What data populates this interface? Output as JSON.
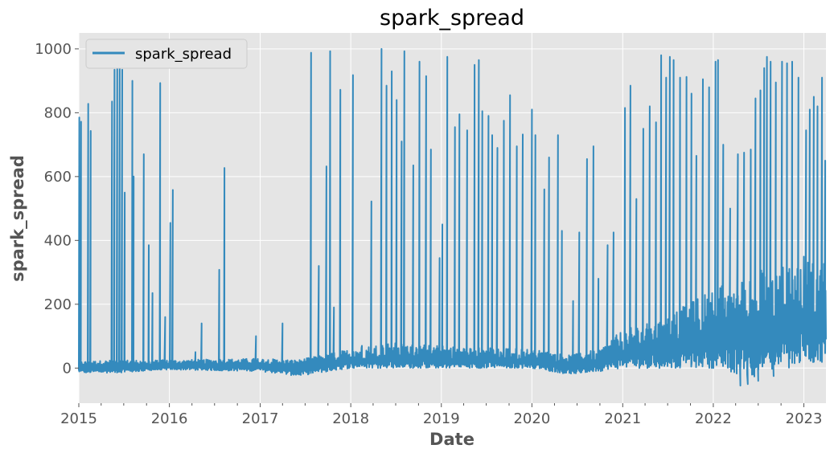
{
  "chart_data": {
    "type": "line",
    "title": "spark_spread",
    "xlabel": "Date",
    "ylabel": "spark_spread",
    "xlim": [
      "2015-01-01",
      "2023-03-31"
    ],
    "ylim": [
      -110,
      1050
    ],
    "x_ticks": [
      "2015",
      "2016",
      "2017",
      "2018",
      "2019",
      "2020",
      "2021",
      "2022",
      "2023"
    ],
    "y_ticks": [
      0,
      200,
      400,
      600,
      800,
      1000
    ],
    "grid": true,
    "legend_position": "top-left",
    "series": [
      {
        "name": "spark_spread",
        "color": "#348abd",
        "baseline_band": [
          [
            "2015-01-01",
            -15,
            20
          ],
          [
            "2015-06-01",
            -15,
            25
          ],
          [
            "2016-01-01",
            -5,
            25
          ],
          [
            "2017-01-01",
            -10,
            30
          ],
          [
            "2017-06-01",
            -25,
            25
          ],
          [
            "2018-01-01",
            0,
            60
          ],
          [
            "2018-06-01",
            0,
            80
          ],
          [
            "2019-01-01",
            0,
            70
          ],
          [
            "2020-01-01",
            0,
            60
          ],
          [
            "2020-06-01",
            -20,
            40
          ],
          [
            "2020-10-01",
            -10,
            60
          ],
          [
            "2021-01-01",
            0,
            120
          ],
          [
            "2021-06-01",
            0,
            150
          ],
          [
            "2022-01-01",
            0,
            250
          ],
          [
            "2022-06-01",
            -30,
            300
          ],
          [
            "2023-01-01",
            10,
            350
          ],
          [
            "2023-03-31",
            10,
            350
          ]
        ],
        "spikes": [
          [
            "2015-01-03",
            785
          ],
          [
            "2015-01-10",
            772
          ],
          [
            "2015-02-08",
            828
          ],
          [
            "2015-02-18",
            743
          ],
          [
            "2015-05-15",
            835
          ],
          [
            "2015-05-25",
            935
          ],
          [
            "2015-06-05",
            960
          ],
          [
            "2015-06-15",
            980
          ],
          [
            "2015-06-25",
            935
          ],
          [
            "2015-07-05",
            550
          ],
          [
            "2015-08-05",
            900
          ],
          [
            "2015-08-10",
            600
          ],
          [
            "2015-09-20",
            670
          ],
          [
            "2015-10-10",
            385
          ],
          [
            "2015-10-25",
            235
          ],
          [
            "2015-11-25",
            893
          ],
          [
            "2015-12-15",
            160
          ],
          [
            "2016-01-05",
            455
          ],
          [
            "2016-01-15",
            558
          ],
          [
            "2016-04-15",
            50
          ],
          [
            "2016-05-10",
            140
          ],
          [
            "2016-07-20",
            308
          ],
          [
            "2016-08-10",
            627
          ],
          [
            "2016-12-15",
            100
          ],
          [
            "2017-04-01",
            140
          ],
          [
            "2017-07-25",
            988
          ],
          [
            "2017-08-25",
            320
          ],
          [
            "2017-09-25",
            632
          ],
          [
            "2017-10-10",
            993
          ],
          [
            "2017-10-25",
            190
          ],
          [
            "2017-11-20",
            872
          ],
          [
            "2018-01-10",
            918
          ],
          [
            "2018-02-15",
            70
          ],
          [
            "2018-03-25",
            522
          ],
          [
            "2018-05-05",
            1000
          ],
          [
            "2018-05-25",
            885
          ],
          [
            "2018-06-15",
            930
          ],
          [
            "2018-07-05",
            840
          ],
          [
            "2018-07-25",
            710
          ],
          [
            "2018-08-05",
            993
          ],
          [
            "2018-09-10",
            635
          ],
          [
            "2018-10-05",
            960
          ],
          [
            "2018-11-01",
            915
          ],
          [
            "2018-11-20",
            685
          ],
          [
            "2018-12-25",
            345
          ],
          [
            "2019-01-05",
            450
          ],
          [
            "2019-01-25",
            975
          ],
          [
            "2019-02-25",
            755
          ],
          [
            "2019-03-15",
            795
          ],
          [
            "2019-04-15",
            745
          ],
          [
            "2019-05-15",
            950
          ],
          [
            "2019-06-01",
            965
          ],
          [
            "2019-06-15",
            805
          ],
          [
            "2019-07-10",
            790
          ],
          [
            "2019-07-25",
            730
          ],
          [
            "2019-08-15",
            690
          ],
          [
            "2019-09-10",
            775
          ],
          [
            "2019-10-05",
            855
          ],
          [
            "2019-11-01",
            695
          ],
          [
            "2019-11-25",
            732
          ],
          [
            "2020-01-01",
            810
          ],
          [
            "2020-01-15",
            730
          ],
          [
            "2020-02-20",
            560
          ],
          [
            "2020-03-10",
            660
          ],
          [
            "2020-04-15",
            730
          ],
          [
            "2020-05-01",
            430
          ],
          [
            "2020-06-15",
            210
          ],
          [
            "2020-07-10",
            425
          ],
          [
            "2020-08-10",
            655
          ],
          [
            "2020-09-05",
            695
          ],
          [
            "2020-09-25",
            280
          ],
          [
            "2020-11-01",
            385
          ],
          [
            "2020-11-25",
            425
          ],
          [
            "2021-01-10",
            815
          ],
          [
            "2021-02-01",
            885
          ],
          [
            "2021-02-25",
            530
          ],
          [
            "2021-03-25",
            750
          ],
          [
            "2021-04-20",
            820
          ],
          [
            "2021-05-15",
            770
          ],
          [
            "2021-06-05",
            980
          ],
          [
            "2021-06-25",
            910
          ],
          [
            "2021-07-10",
            975
          ],
          [
            "2021-07-25",
            965
          ],
          [
            "2021-08-20",
            910
          ],
          [
            "2021-09-15",
            912
          ],
          [
            "2021-10-05",
            860
          ],
          [
            "2021-10-25",
            665
          ],
          [
            "2021-11-20",
            905
          ],
          [
            "2021-12-15",
            880
          ],
          [
            "2022-01-10",
            960
          ],
          [
            "2022-01-20",
            965
          ],
          [
            "2022-02-10",
            700
          ],
          [
            "2022-03-10",
            500
          ],
          [
            "2022-04-10",
            670
          ],
          [
            "2022-05-05",
            675
          ],
          [
            "2022-06-01",
            685
          ],
          [
            "2022-06-20",
            845
          ],
          [
            "2022-07-10",
            870
          ],
          [
            "2022-07-25",
            940
          ],
          [
            "2022-08-05",
            975
          ],
          [
            "2022-08-20",
            960
          ],
          [
            "2022-09-10",
            895
          ],
          [
            "2022-10-05",
            960
          ],
          [
            "2022-10-25",
            955
          ],
          [
            "2022-11-15",
            960
          ],
          [
            "2022-12-10",
            910
          ],
          [
            "2023-01-10",
            745
          ],
          [
            "2023-01-25",
            810
          ],
          [
            "2023-02-10",
            850
          ],
          [
            "2023-02-25",
            820
          ],
          [
            "2023-03-15",
            910
          ],
          [
            "2023-03-28",
            650
          ]
        ],
        "dips": [
          [
            "2022-04-20",
            -55
          ],
          [
            "2022-05-20",
            -50
          ],
          [
            "2022-07-01",
            -40
          ],
          [
            "2022-09-01",
            -25
          ]
        ]
      }
    ]
  }
}
